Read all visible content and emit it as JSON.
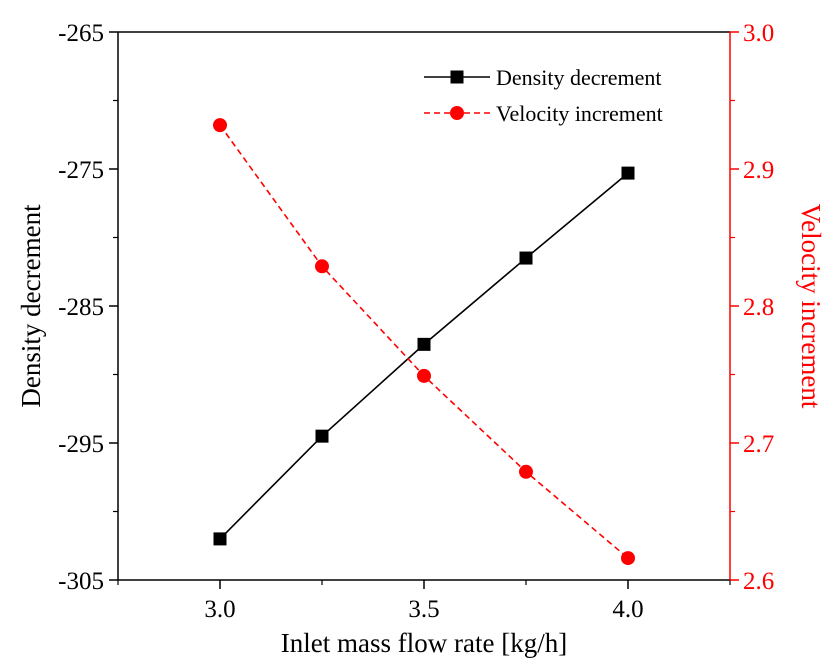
{
  "chart_data": {
    "type": "line",
    "x": [
      3.0,
      3.25,
      3.5,
      3.75,
      4.0
    ],
    "xlabel": "Inlet mass flow rate [kg/h]",
    "xlim": [
      2.75,
      4.25
    ],
    "xticks": [
      3.0,
      3.5,
      4.0
    ],
    "xtick_labels": [
      "3.0",
      "3.5",
      "4.0"
    ],
    "y_left": {
      "label": "Density decrement",
      "lim": [
        -305,
        -265
      ],
      "ticks": [
        -305,
        -295,
        -285,
        -275,
        -265
      ],
      "tick_labels": [
        "-305",
        "-295",
        "-285",
        "-275",
        "-265"
      ],
      "color": "#000000"
    },
    "y_right": {
      "label": "Velocity increment",
      "lim": [
        2.6,
        3.0
      ],
      "ticks": [
        2.6,
        2.7,
        2.8,
        2.9,
        3.0
      ],
      "tick_labels": [
        "2.6",
        "2.7",
        "2.8",
        "2.9",
        "3.0"
      ],
      "color": "#ff0000"
    },
    "series": [
      {
        "name": "Density decrement",
        "axis": "left",
        "values": [
          -302.0,
          -294.5,
          -287.8,
          -281.5,
          -275.3
        ],
        "color": "#000000",
        "marker": "square",
        "line_style": "solid"
      },
      {
        "name": "Velocity increment",
        "axis": "right",
        "values": [
          2.932,
          2.829,
          2.749,
          2.679,
          2.616
        ],
        "color": "#ff0000",
        "marker": "circle",
        "line_style": "dashed"
      }
    ],
    "legend_position": "top-right",
    "grid": false
  }
}
